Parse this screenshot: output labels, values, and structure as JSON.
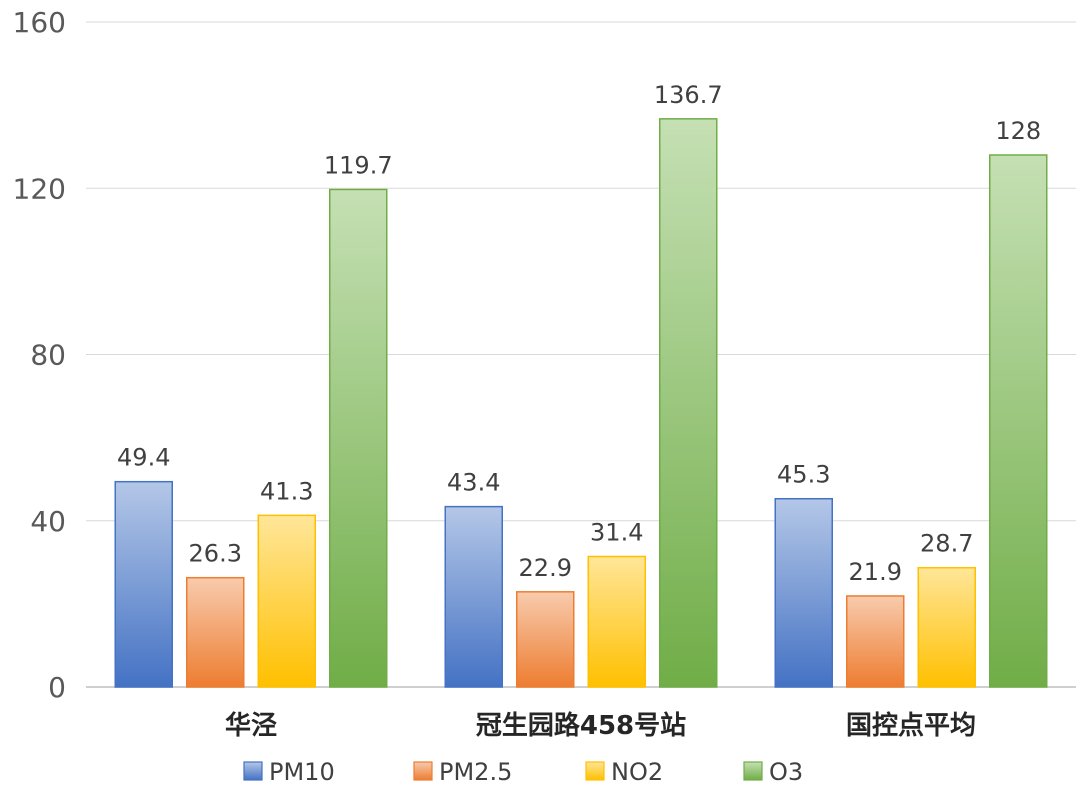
{
  "chart_data": {
    "type": "bar",
    "title": "",
    "xlabel": "",
    "ylabel": "",
    "categories": [
      "华泾",
      "冠生园路458号站",
      "国控点平均"
    ],
    "series": [
      {
        "name": "PM10",
        "values": [
          49.4,
          43.4,
          45.3
        ],
        "color_top": "#b4c7e7",
        "color_bottom": "#4472c4",
        "stroke": "#4472c4"
      },
      {
        "name": "PM2.5",
        "values": [
          26.3,
          22.9,
          21.9
        ],
        "color_top": "#f8cbad",
        "color_bottom": "#ed7d31",
        "stroke": "#ed7d31"
      },
      {
        "name": "NO2",
        "values": [
          41.3,
          31.4,
          28.7
        ],
        "color_top": "#ffe699",
        "color_bottom": "#ffc000",
        "stroke": "#ffc000"
      },
      {
        "name": "O3",
        "values": [
          119.7,
          136.7,
          128
        ],
        "color_top": "#c5e0b4",
        "color_bottom": "#70ad47",
        "stroke": "#70ad47"
      }
    ],
    "value_labels": [
      [
        "49.4",
        "43.4",
        "45.3"
      ],
      [
        "26.3",
        "22.9",
        "21.9"
      ],
      [
        "41.3",
        "31.4",
        "28.7"
      ],
      [
        "119.7",
        "136.7",
        "128"
      ]
    ],
    "ylim": [
      0,
      160
    ],
    "yticks": [
      0,
      40,
      80,
      120,
      160
    ],
    "grid": true,
    "legend": "bottom"
  }
}
